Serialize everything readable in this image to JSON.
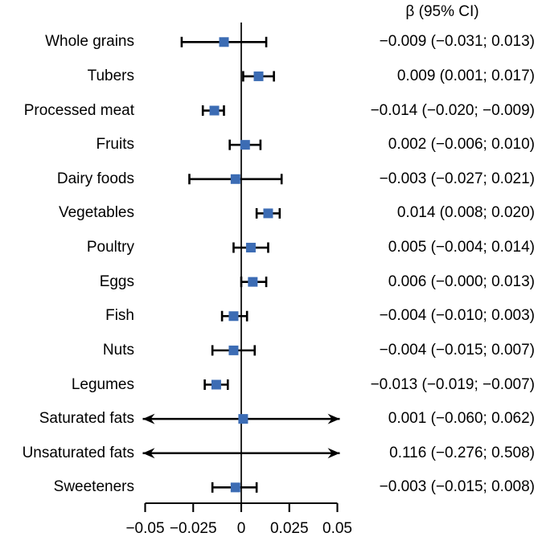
{
  "chart_data": {
    "type": "forest",
    "title": "β (95% CI)",
    "xlabel": "",
    "ylabel": "",
    "xlim": [
      -0.05,
      0.05
    ],
    "xticks": [
      -0.05,
      -0.025,
      0,
      0.025,
      0.05
    ],
    "xtick_labels": [
      "−0.05",
      "−0.025",
      "0",
      "0.025",
      "0.05"
    ],
    "reference_line_x": 0,
    "grid": false,
    "legend_position": "none",
    "marker_shape": "square",
    "marker_color": "#3C6CB4",
    "line_color": "#000000",
    "clipped_ci_style": "double-headed-arrow",
    "rows": [
      {
        "label": "Whole grains",
        "beta": -0.009,
        "ci_low": -0.031,
        "ci_high": 0.013,
        "ci_text": "−0.009 (−0.031; 0.013)"
      },
      {
        "label": "Tubers",
        "beta": 0.009,
        "ci_low": 0.001,
        "ci_high": 0.017,
        "ci_text": "0.009 (0.001; 0.017)"
      },
      {
        "label": "Processed meat",
        "beta": -0.014,
        "ci_low": -0.02,
        "ci_high": -0.009,
        "ci_text": "−0.014 (−0.020; −0.009)"
      },
      {
        "label": "Fruits",
        "beta": 0.002,
        "ci_low": -0.006,
        "ci_high": 0.01,
        "ci_text": "0.002 (−0.006; 0.010)"
      },
      {
        "label": "Dairy foods",
        "beta": -0.003,
        "ci_low": -0.027,
        "ci_high": 0.021,
        "ci_text": "−0.003 (−0.027; 0.021)"
      },
      {
        "label": "Vegetables",
        "beta": 0.014,
        "ci_low": 0.008,
        "ci_high": 0.02,
        "ci_text": "0.014 (0.008; 0.020)"
      },
      {
        "label": "Poultry",
        "beta": 0.005,
        "ci_low": -0.004,
        "ci_high": 0.014,
        "ci_text": "0.005 (−0.004; 0.014)"
      },
      {
        "label": "Eggs",
        "beta": 0.006,
        "ci_low": -0.0,
        "ci_high": 0.013,
        "ci_text": "0.006 (−0.000; 0.013)"
      },
      {
        "label": "Fish",
        "beta": -0.004,
        "ci_low": -0.01,
        "ci_high": 0.003,
        "ci_text": "−0.004 (−0.010; 0.003)"
      },
      {
        "label": "Nuts",
        "beta": -0.004,
        "ci_low": -0.015,
        "ci_high": 0.007,
        "ci_text": "−0.004 (−0.015; 0.007)"
      },
      {
        "label": "Legumes",
        "beta": -0.013,
        "ci_low": -0.019,
        "ci_high": -0.007,
        "ci_text": "−0.013 (−0.019; −0.007)"
      },
      {
        "label": "Saturated fats",
        "beta": 0.001,
        "ci_low": -0.06,
        "ci_high": 0.062,
        "ci_text": "0.001 (−0.060; 0.062)"
      },
      {
        "label": "Unsaturated fats",
        "beta": 0.116,
        "ci_low": -0.276,
        "ci_high": 0.508,
        "ci_text": "0.116 (−0.276; 0.508)"
      },
      {
        "label": "Sweeteners",
        "beta": -0.003,
        "ci_low": -0.015,
        "ci_high": 0.008,
        "ci_text": "−0.003 (−0.015; 0.008)"
      }
    ]
  }
}
